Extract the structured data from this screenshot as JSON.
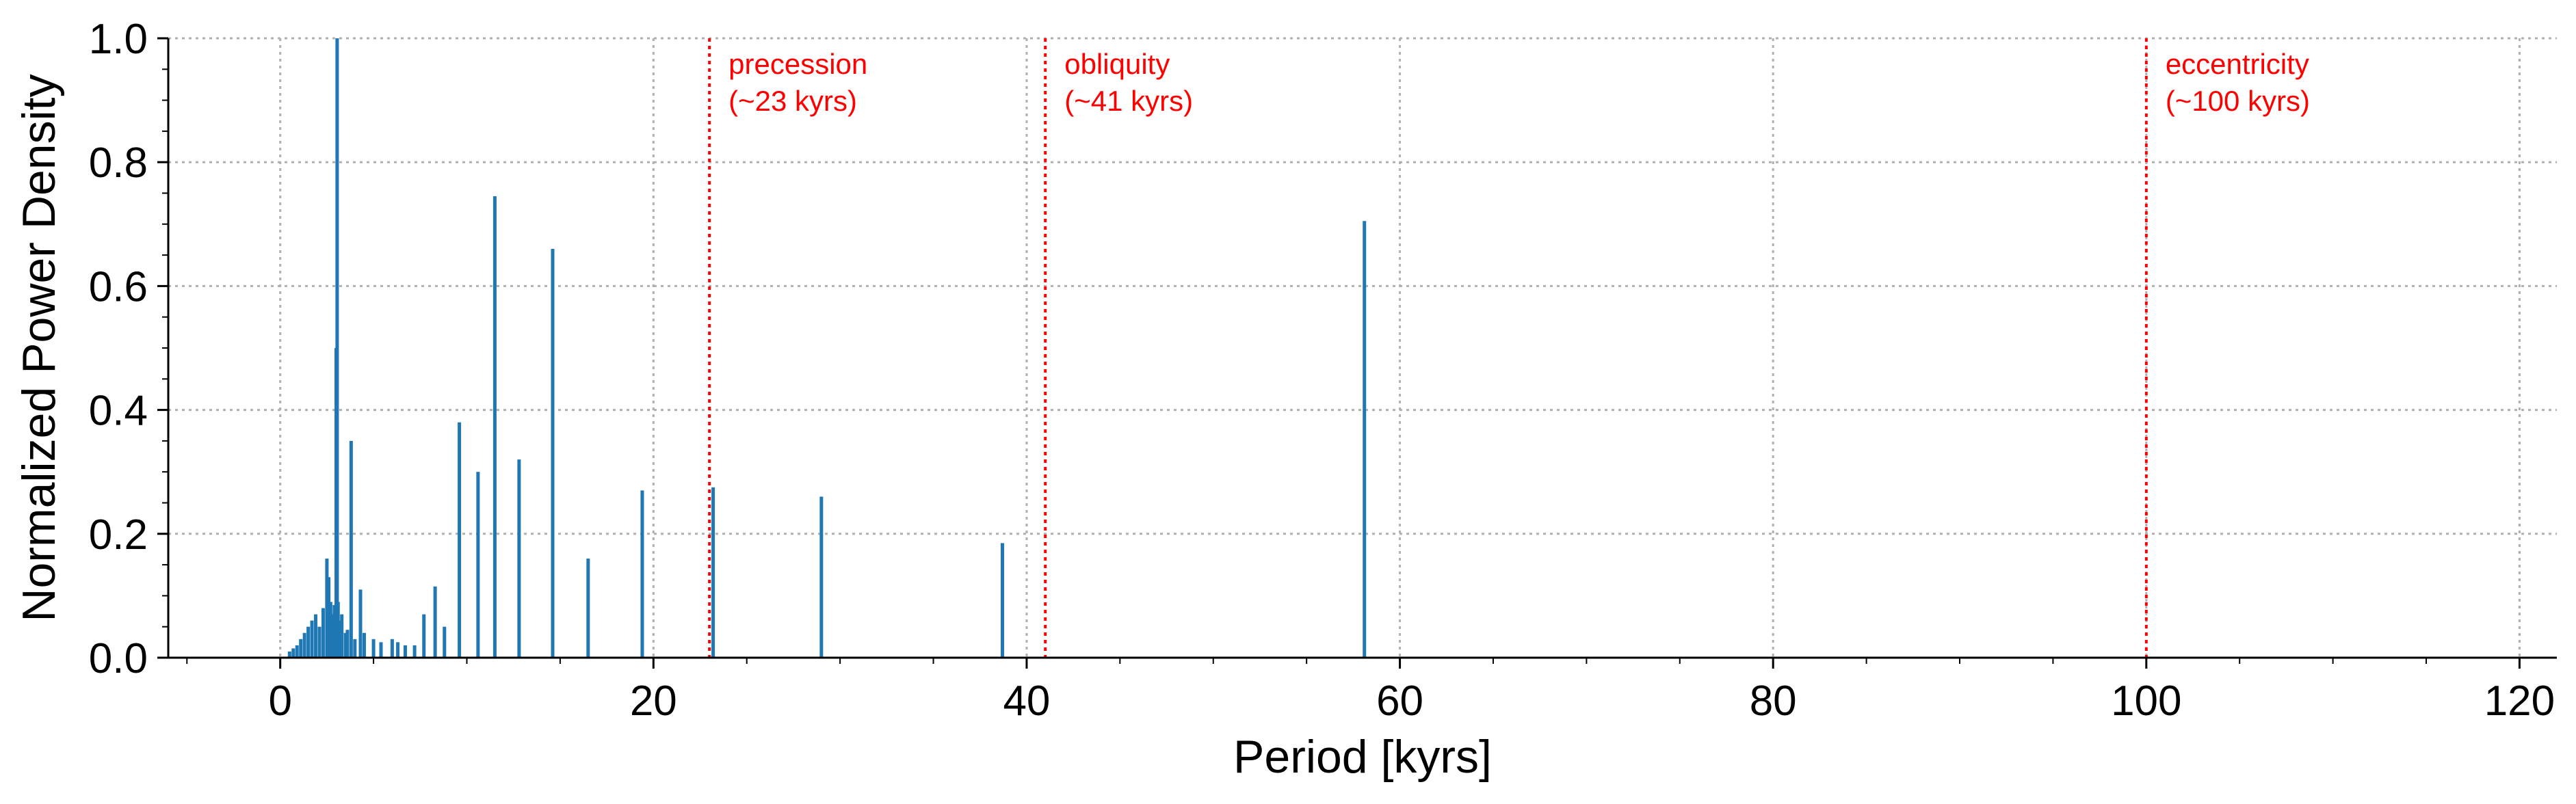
{
  "chart_data": {
    "type": "bar",
    "xlabel": "Period [kyrs]",
    "ylabel": "Normalized Power Density",
    "xlim": [
      -6,
      122
    ],
    "ylim": [
      0,
      1.0
    ],
    "xticks": [
      0,
      20,
      40,
      60,
      80,
      100,
      120
    ],
    "yticks": [
      0.0,
      0.2,
      0.4,
      0.6,
      0.8,
      1.0
    ],
    "xtick_labels": [
      "0",
      "20",
      "40",
      "60",
      "80",
      "100",
      "120"
    ],
    "ytick_labels": [
      "0.0",
      "0.2",
      "0.4",
      "0.6",
      "0.8",
      "1.0"
    ],
    "grid": true,
    "bar_color": "#1f77b4",
    "series": [
      {
        "x": [
          0.5,
          0.7,
          0.9,
          1.1,
          1.3,
          1.5,
          1.7,
          1.9,
          2.1,
          2.3,
          2.5,
          2.6,
          2.7,
          2.8,
          2.9,
          3.0,
          3.05,
          3.1,
          3.2,
          3.3,
          3.5,
          3.6,
          3.8,
          4.0,
          4.3,
          4.5,
          5.0,
          5.4,
          6.0,
          6.3,
          6.7,
          7.2,
          7.7,
          8.3,
          8.8,
          9.6,
          10.6,
          11.5,
          12.8,
          14.6,
          16.5,
          19.4,
          23.2,
          29.0,
          38.7,
          58.1
        ],
        "values": [
          0.01,
          0.015,
          0.02,
          0.03,
          0.04,
          0.05,
          0.06,
          0.07,
          0.05,
          0.08,
          0.16,
          0.13,
          0.09,
          0.07,
          0.085,
          0.5,
          1.0,
          0.09,
          0.06,
          0.07,
          0.04,
          0.045,
          0.35,
          0.03,
          0.11,
          0.04,
          0.03,
          0.025,
          0.03,
          0.025,
          0.02,
          0.02,
          0.07,
          0.115,
          0.05,
          0.38,
          0.3,
          0.745,
          0.32,
          0.66,
          0.16,
          0.27,
          0.275,
          0.26,
          0.185,
          0.705
        ]
      }
    ],
    "reference_lines": [
      {
        "x": 23,
        "color": "#ff0000",
        "label_line1": "precession",
        "label_line2": "(~23 kyrs)"
      },
      {
        "x": 41,
        "color": "#ff0000",
        "label_line1": "obliquity",
        "label_line2": "(~41 kyrs)"
      },
      {
        "x": 100,
        "color": "#ff0000",
        "label_line1": "eccentricity",
        "label_line2": "(~100 kyrs)"
      }
    ]
  }
}
